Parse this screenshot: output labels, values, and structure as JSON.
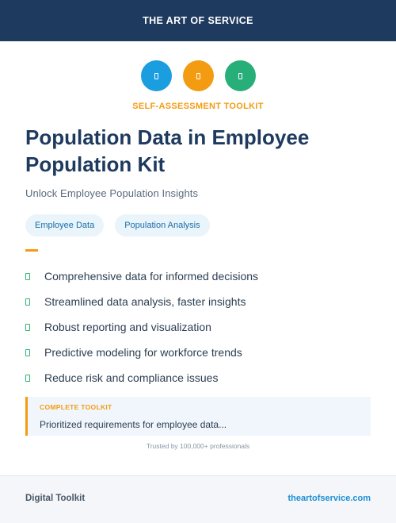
{
  "header": {
    "brand": "THE ART OF SERVICE"
  },
  "icons": [
    {
      "name": "document-icon",
      "color": "#1a9ee0"
    },
    {
      "name": "chart-icon",
      "color": "#f39c12"
    },
    {
      "name": "checklist-icon",
      "color": "#27ae79"
    }
  ],
  "kicker": "SELF-ASSESSMENT TOOLKIT",
  "title": "Population Data in Employee Population Kit",
  "subtitle": "Unlock Employee Population Insights",
  "tags": [
    "Employee Data",
    "Population Analysis"
  ],
  "features": [
    "Comprehensive data for informed decisions",
    "Streamlined data analysis, faster insights",
    "Robust reporting and visualization",
    "Predictive modeling for workforce trends",
    "Reduce risk and compliance issues"
  ],
  "callout": {
    "label": "COMPLETE TOOLKIT",
    "text": "Prioritized requirements for employee data..."
  },
  "trusted": "Trusted by 100,000+ professionals",
  "footer": {
    "left": "Digital Toolkit",
    "right": "theartofservice.com"
  },
  "colors": {
    "header_bg": "#1e3a5f",
    "accent_orange": "#f39c12",
    "accent_green": "#2bb673",
    "link_blue": "#1a8fd6"
  }
}
